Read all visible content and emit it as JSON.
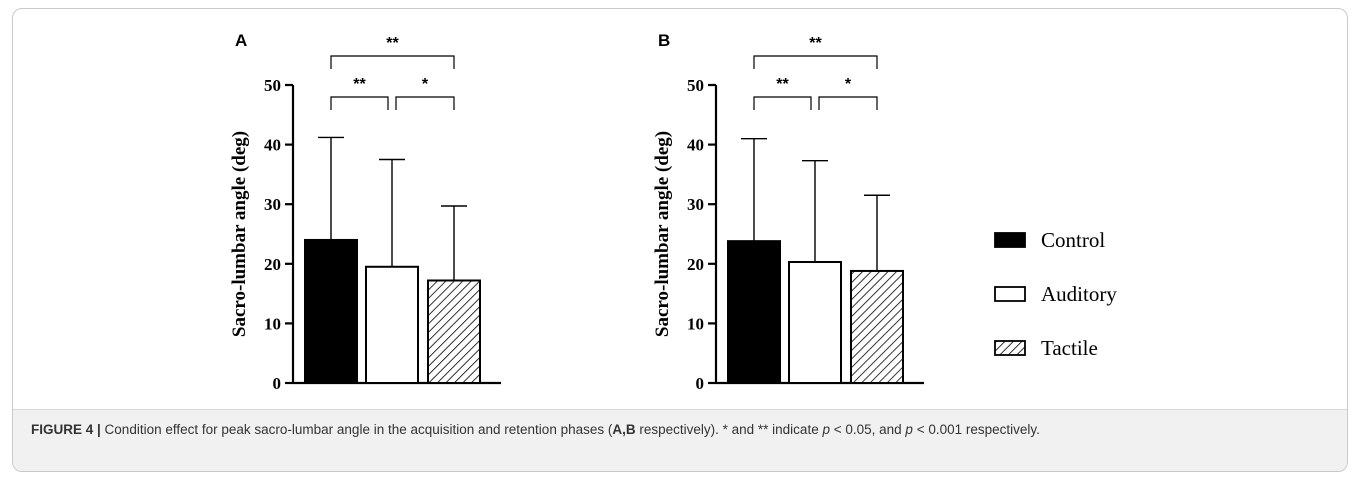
{
  "chart_data": [
    {
      "type": "bar",
      "panel_label": "A",
      "categories": [
        "Control",
        "Auditory",
        "Tactile"
      ],
      "values": [
        24.0,
        19.5,
        17.2
      ],
      "error_upper": [
        41.2,
        37.5,
        29.7
      ],
      "ylabel": "Sacro-lumbar angle (deg)",
      "ylim": [
        0,
        50
      ],
      "yticks": [
        "0",
        "10",
        "20",
        "30",
        "40",
        "50"
      ],
      "significance": [
        {
          "from": "Control",
          "to": "Tactile",
          "label": "**"
        },
        {
          "from": "Control",
          "to": "Auditory",
          "label": "**"
        },
        {
          "from": "Auditory",
          "to": "Tactile",
          "label": "*"
        }
      ]
    },
    {
      "type": "bar",
      "panel_label": "B",
      "categories": [
        "Control",
        "Auditory",
        "Tactile"
      ],
      "values": [
        23.8,
        20.3,
        18.8
      ],
      "error_upper": [
        41.0,
        37.3,
        31.5
      ],
      "ylabel": "Sacro-lumbar angle (deg)",
      "ylim": [
        0,
        50
      ],
      "yticks": [
        "0",
        "10",
        "20",
        "30",
        "40",
        "50"
      ],
      "significance": [
        {
          "from": "Control",
          "to": "Tactile",
          "label": "**"
        },
        {
          "from": "Control",
          "to": "Auditory",
          "label": "**"
        },
        {
          "from": "Auditory",
          "to": "Tactile",
          "label": "*"
        }
      ]
    }
  ],
  "legend": {
    "placement": "right",
    "items": [
      {
        "label": "Control",
        "fill": "solid"
      },
      {
        "label": "Auditory",
        "fill": "empty"
      },
      {
        "label": "Tactile",
        "fill": "hatched"
      }
    ]
  },
  "caption": {
    "figure_label": "FIGURE 4 |",
    "text_1": " Condition effect for peak sacro-lumbar angle in the acquisition and retention phases (",
    "panels": "A,B",
    "text_2": " respectively). * and ** indicate ",
    "p1": "p",
    "text_3": " < 0.05, and ",
    "p2": "p",
    "text_4": " < 0.001 respectively."
  },
  "colors": {
    "bar_solid": "#000000",
    "bar_empty": "#ffffff",
    "hatch": "#000000",
    "caption_bg": "#f1f1f1"
  }
}
